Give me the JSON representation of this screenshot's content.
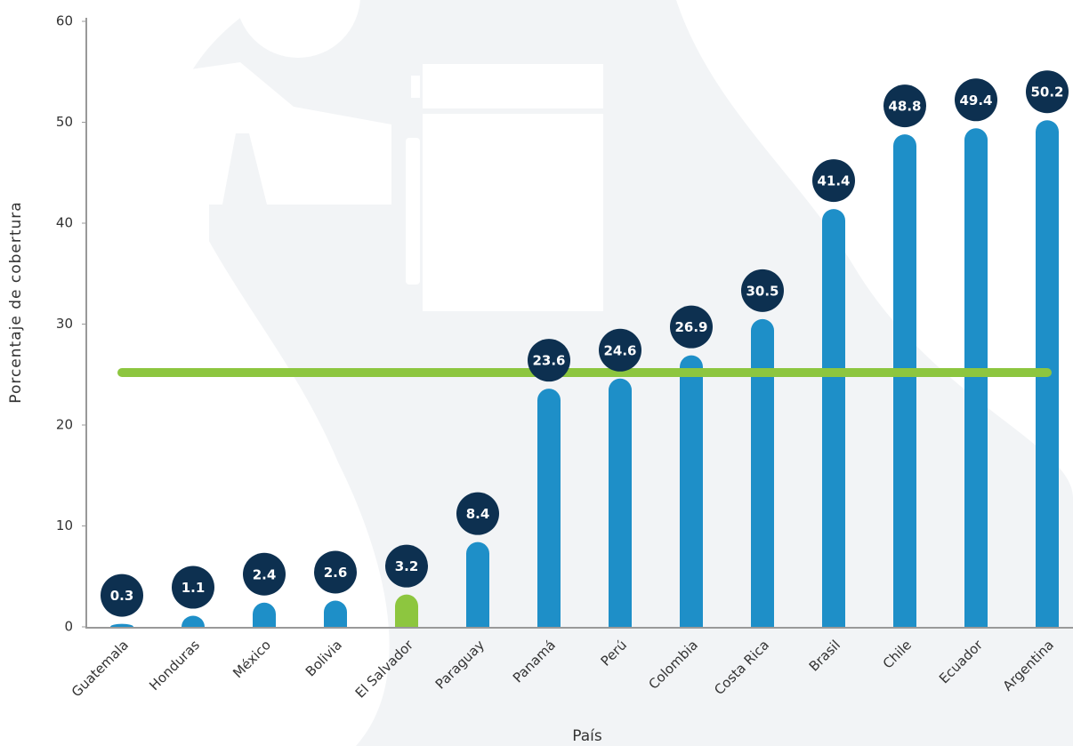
{
  "chart_data": {
    "type": "bar",
    "x_label": "País",
    "y_label": "Porcentaje de cobertura",
    "categories": [
      "Guatemala",
      "Honduras",
      "México",
      "Bolivia",
      "El Salvador",
      "Paraguay",
      "Panamá",
      "Perú",
      "Colombia",
      "Costa Rica",
      "Brasil",
      "Chile",
      "Ecuador",
      "Argentina"
    ],
    "values": [
      0.3,
      1.1,
      2.4,
      2.6,
      3.2,
      8.4,
      23.6,
      24.6,
      26.9,
      30.5,
      41.4,
      48.8,
      49.4,
      50.2
    ],
    "colors": [
      "#1e8fc8",
      "#1e8fc8",
      "#1e8fc8",
      "#1e8fc8",
      "#8dc63f",
      "#1e8fc8",
      "#1e8fc8",
      "#1e8fc8",
      "#1e8fc8",
      "#1e8fc8",
      "#1e8fc8",
      "#1e8fc8",
      "#1e8fc8",
      "#1e8fc8"
    ],
    "label_color": "#0d3050",
    "reference_line": {
      "value": 25.2,
      "color": "#8dc63f"
    },
    "ylim": [
      0,
      60
    ],
    "yticks": [
      0,
      10,
      20,
      30,
      40,
      50,
      60
    ],
    "grid": false
  }
}
